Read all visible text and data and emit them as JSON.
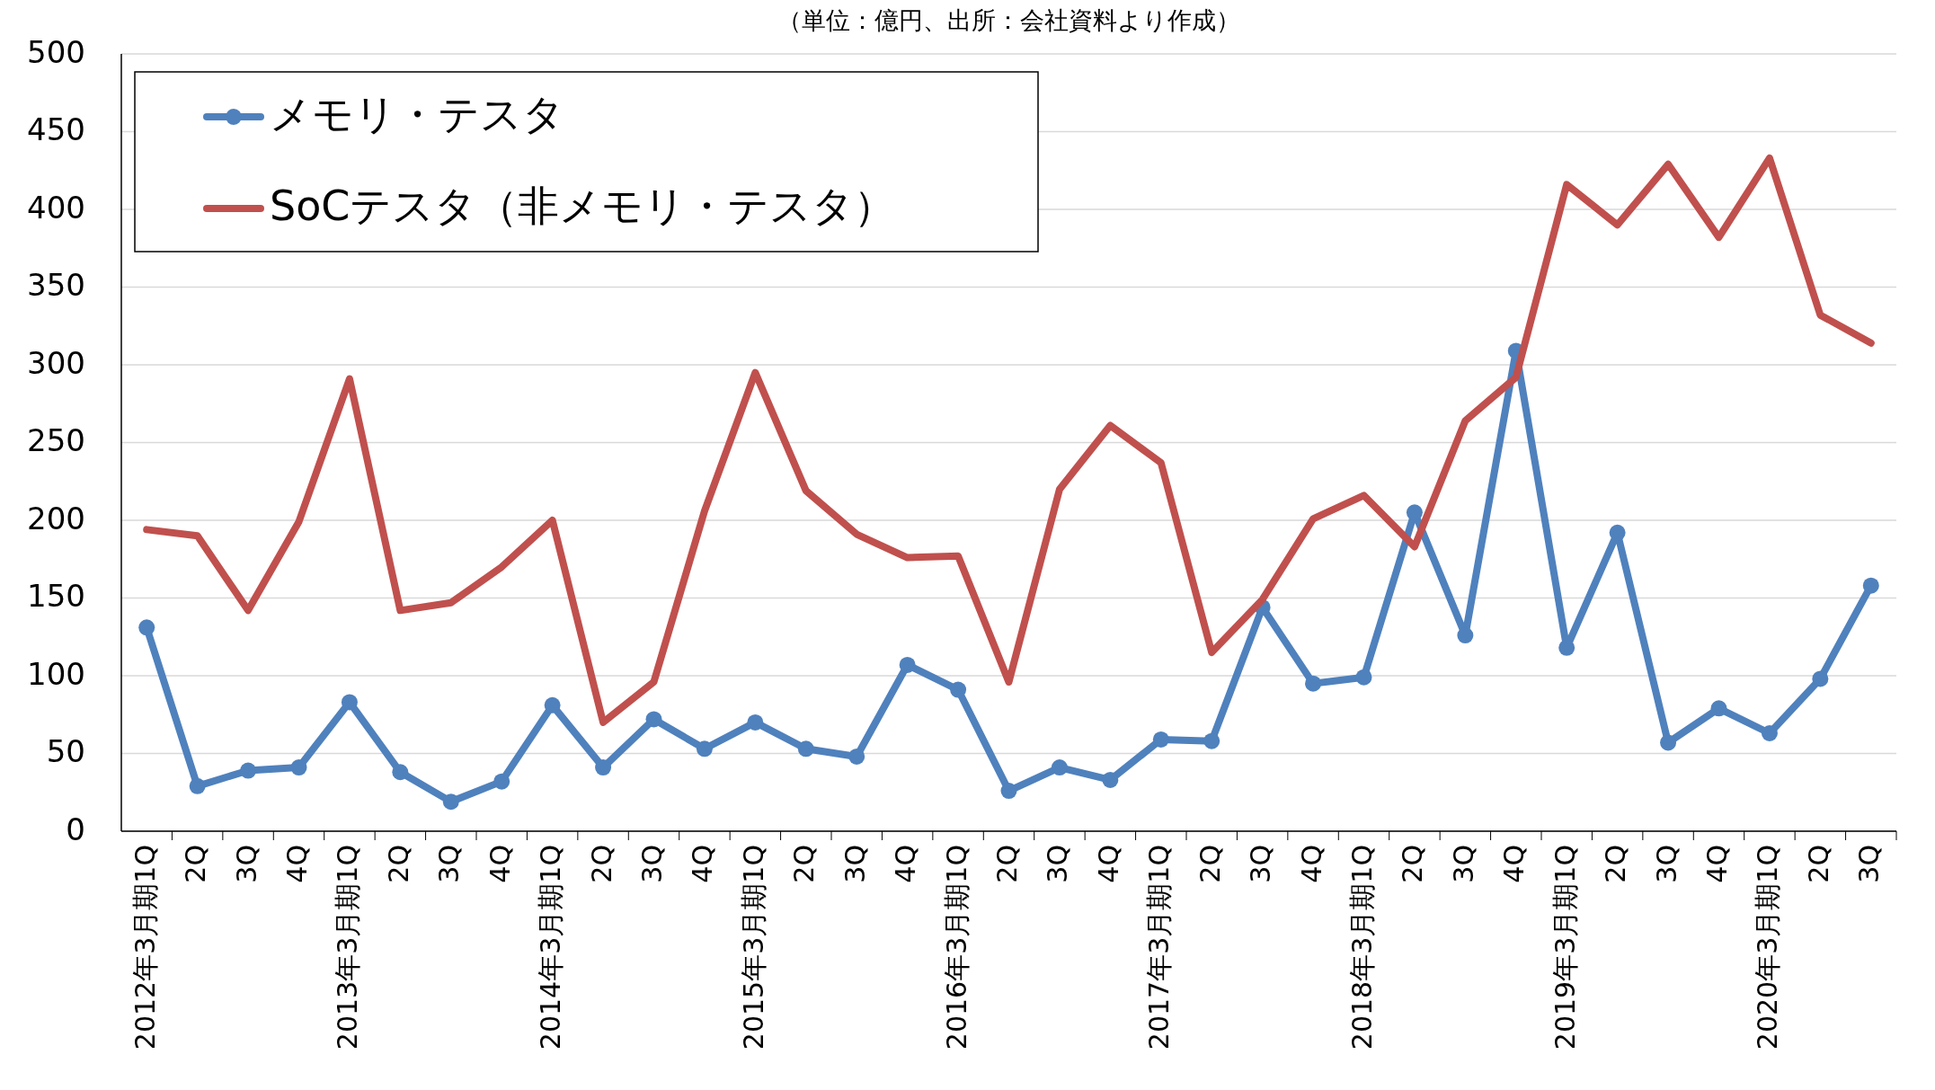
{
  "chart_data": {
    "type": "line",
    "title": "（単位：億円、出所：会社資料より作成）",
    "categories": [
      "2012年3月期1Q",
      "2Q",
      "3Q",
      "4Q",
      "2013年3月期1Q",
      "2Q",
      "3Q",
      "4Q",
      "2014年3月期1Q",
      "2Q",
      "3Q",
      "4Q",
      "2015年3月期1Q",
      "2Q",
      "3Q",
      "4Q",
      "2016年3月期1Q",
      "2Q",
      "3Q",
      "4Q",
      "2017年3月期1Q",
      "2Q",
      "3Q",
      "4Q",
      "2018年3月期1Q",
      "2Q",
      "3Q",
      "4Q",
      "2019年3月期1Q",
      "2Q",
      "3Q",
      "4Q",
      "2020年3月期1Q",
      "2Q",
      "3Q"
    ],
    "series": [
      {
        "name": "メモリ・テスタ",
        "color": "#4f81bd",
        "marker": "circle",
        "values": [
          131,
          29,
          39,
          41,
          83,
          38,
          19,
          32,
          81,
          41,
          72,
          53,
          70,
          53,
          48,
          107,
          91,
          26,
          41,
          33,
          59,
          58,
          144,
          95,
          99,
          205,
          126,
          309,
          118,
          192,
          57,
          79,
          63,
          98,
          158
        ]
      },
      {
        "name": "SoCテスタ（非メモリ・テスタ）",
        "color": "#c0504d",
        "marker": "none",
        "values": [
          194,
          190,
          142,
          199,
          291,
          142,
          147,
          170,
          200,
          70,
          96,
          206,
          295,
          219,
          191,
          176,
          177,
          96,
          220,
          261,
          237,
          115,
          149,
          201,
          216,
          183,
          264,
          292,
          416,
          390,
          429,
          382,
          433,
          332,
          314
        ]
      }
    ],
    "ylim": [
      0,
      500
    ],
    "yticks": [
      0,
      50,
      100,
      150,
      200,
      250,
      300,
      350,
      400,
      450,
      500
    ],
    "grid": "y",
    "legend": "top left"
  }
}
